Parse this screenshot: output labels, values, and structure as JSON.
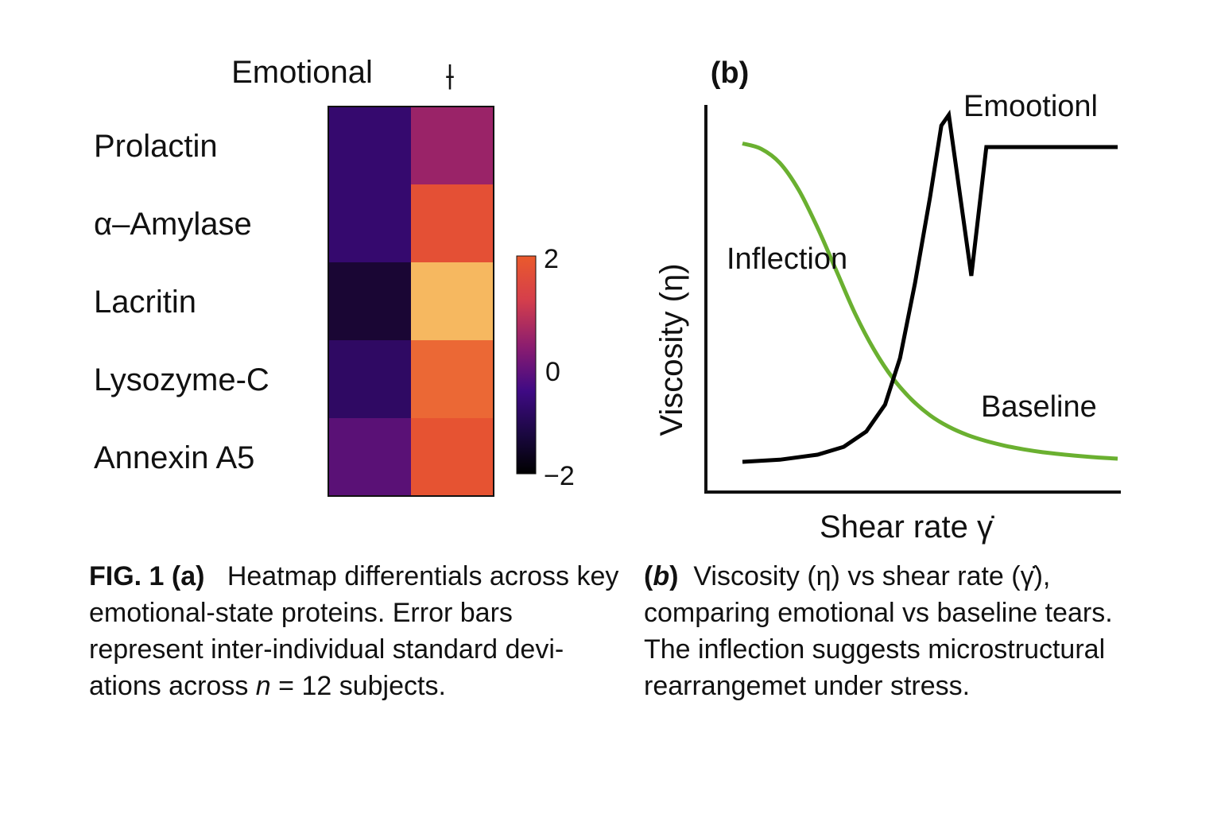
{
  "panel_a": {
    "column_header": "Emotional",
    "column_marker": "⟊",
    "colorbar": {
      "ticks": [
        "2",
        "0",
        "−2"
      ]
    }
  },
  "panel_b": {
    "label": "(b)",
    "annotations": {
      "emotional": "Emootionl",
      "inflection": "Inflection",
      "baseline": "Baseline"
    }
  },
  "caption_a": {
    "label": "FIG.  1 (a)",
    "text1": "Heatmap differentials across key emotional-state proteins. Error bars represent inter-individual standard devi-ations across",
    "n_symbol": "n",
    "text2": "= 12 subjects."
  },
  "caption_b": {
    "label_open": "(",
    "label_letter": "b",
    "label_close": ")",
    "text": "Viscosity (η) vs shear rate (γ̇), comparing emotional vs baseline tears. The inflection suggests microstructural rearrangemet under stress."
  },
  "chart_data": [
    {
      "type": "heatmap",
      "rows": [
        "Prolactin",
        "α–Amylase",
        "Lacritin",
        "Lysozyme-C",
        "Annexin A5"
      ],
      "columns": [
        "",
        ""
      ],
      "values": [
        [
          -1.1,
          0.2
        ],
        [
          -1.1,
          1.7
        ],
        [
          -1.6,
          2.6
        ],
        [
          -1.2,
          2.1
        ],
        [
          -0.6,
          1.8
        ]
      ],
      "colorscale": "inferno-like",
      "colors": {
        "-2": "#050306",
        "-1": "#3a0a7a",
        "0": "#8a1c70",
        "1": "#d83d4a",
        "2": "#e9582c",
        "2.6": "#f6b860"
      },
      "colorbar_range": [
        -2,
        2
      ],
      "colorbar_ticks": [
        2,
        0,
        -2
      ]
    },
    {
      "type": "line",
      "xlabel": "Shear rate γ̇",
      "ylabel": "Viscosity (η)",
      "xlim": [
        0,
        10
      ],
      "ylim": [
        0,
        10
      ],
      "grid": false,
      "series": [
        {
          "name": "Baseline",
          "color": "#6ab030",
          "x": [
            0,
            0.5,
            1.0,
            1.5,
            2.0,
            2.5,
            3.0,
            3.5,
            4.0,
            4.5,
            5.0,
            5.5,
            6.0,
            6.5,
            7.0,
            7.5,
            8.0,
            8.5,
            9.0,
            9.5,
            10.0
          ],
          "y": [
            9.1,
            8.95,
            8.55,
            7.8,
            6.75,
            5.55,
            4.35,
            3.35,
            2.55,
            1.95,
            1.5,
            1.18,
            0.95,
            0.78,
            0.65,
            0.55,
            0.47,
            0.41,
            0.36,
            0.32,
            0.29
          ]
        },
        {
          "name": "Emootionl",
          "color": "#000000",
          "x": [
            0,
            1.0,
            2.0,
            2.7,
            3.3,
            3.8,
            4.2,
            4.6,
            5.0,
            5.3,
            5.5,
            6.1,
            6.5,
            10.0
          ],
          "y": [
            0.2,
            0.26,
            0.4,
            0.62,
            1.05,
            1.8,
            3.1,
            5.2,
            7.6,
            9.6,
            9.9,
            5.4,
            9.0,
            9.0
          ]
        }
      ]
    }
  ]
}
